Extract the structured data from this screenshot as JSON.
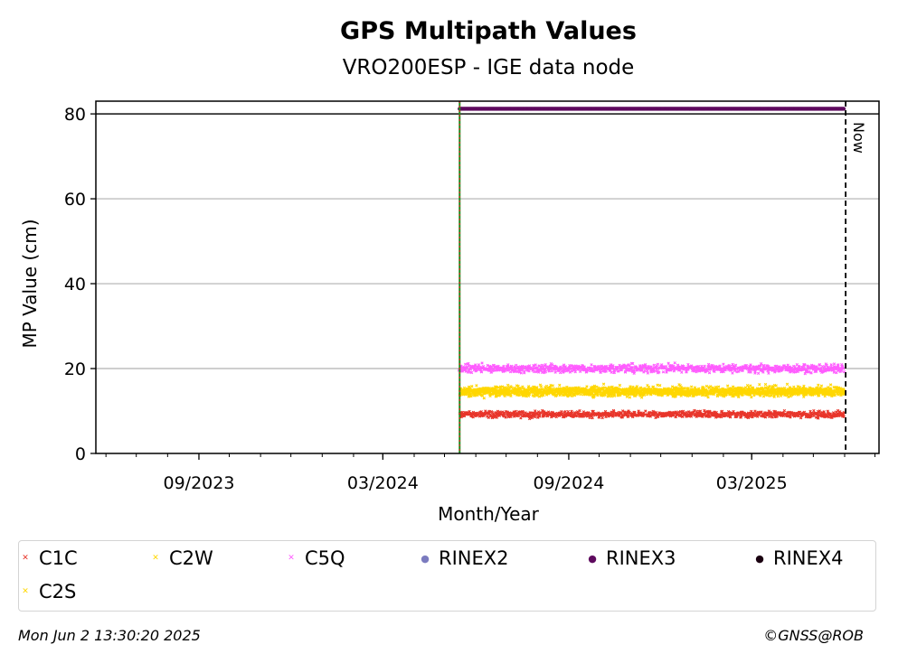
{
  "chart_data": {
    "type": "scatter",
    "title": "GPS Multipath Values",
    "subtitle": "VRO200ESP - IGE data node",
    "xlabel": "Month/Year",
    "ylabel": "MP Value (cm)",
    "ylim": [
      0,
      83
    ],
    "yticks": [
      0,
      20,
      40,
      60,
      80
    ],
    "xlim": [
      "2023-05-22",
      "2025-07-05"
    ],
    "xtick_labels": [
      "09/2023",
      "03/2024",
      "09/2024",
      "03/2025"
    ],
    "xtick_dates": [
      "2023-09-01",
      "2024-03-01",
      "2024-09-01",
      "2025-03-01"
    ],
    "grid": "horizontal",
    "reference_line_y": 80,
    "start_marker_date": "2024-05-16",
    "now_marker_date": "2025-06-02",
    "now_label": "Now",
    "series": [
      {
        "name": "C1C",
        "marker": "x",
        "color": "#e8352a",
        "mean": 9.2,
        "spread": 0.45,
        "x_range": [
          "2024-05-16",
          "2025-05-31"
        ]
      },
      {
        "name": "C2W",
        "marker": "x",
        "color": "#ffd700",
        "mean": 14.8,
        "spread": 0.7,
        "x_range": [
          "2024-05-16",
          "2025-05-31"
        ]
      },
      {
        "name": "C5Q",
        "marker": "x",
        "color": "#ff5cff",
        "mean": 20.0,
        "spread": 0.6,
        "x_range": [
          "2024-05-16",
          "2025-05-31"
        ]
      },
      {
        "name": "RINEX2",
        "marker": "o",
        "color": "#7b7bbf"
      },
      {
        "name": "RINEX3",
        "marker": "o",
        "color": "#5e0a5e",
        "mean": 81.2,
        "spread": 0,
        "x_range": [
          "2024-05-16",
          "2025-05-31"
        ]
      },
      {
        "name": "RINEX4",
        "marker": "o",
        "color": "#1a0010"
      },
      {
        "name": "C2S",
        "marker": "x",
        "color": "#ffd700",
        "mean": 14.4,
        "spread": 0.6,
        "x_range": [
          "2024-05-16",
          "2025-05-31"
        ]
      }
    ]
  },
  "legend": {
    "items": [
      {
        "label": "C1C",
        "symbol": "✕",
        "color": "#e8352a"
      },
      {
        "label": "C2W",
        "symbol": "✕",
        "color": "#ffd700"
      },
      {
        "label": "C5Q",
        "symbol": "✕",
        "color": "#ff5cff"
      },
      {
        "label": "RINEX2",
        "symbol": "●",
        "color": "#7b7bbf"
      },
      {
        "label": "RINEX3",
        "symbol": "●",
        "color": "#5e0a5e"
      },
      {
        "label": "RINEX4",
        "symbol": "●",
        "color": "#1a0010"
      },
      {
        "label": "C2S",
        "symbol": "✕",
        "color": "#ffd700"
      }
    ]
  },
  "footer": {
    "timestamp": "Mon Jun  2 13:30:20 2025",
    "copyright": "©GNSS@ROB"
  }
}
